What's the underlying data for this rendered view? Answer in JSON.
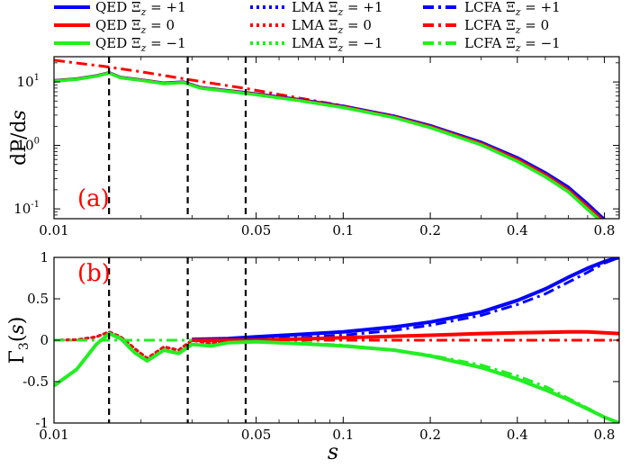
{
  "chart_data": [
    {
      "panel_label": "(a)",
      "type": "line",
      "ylabel": "dP/ds",
      "xscale": "log",
      "yscale": "log",
      "xlim": [
        0.01,
        0.9
      ],
      "ylim": [
        0.07,
        25
      ],
      "x_ticks": [
        0.01,
        0.05,
        0.1,
        0.2,
        0.4,
        0.8
      ],
      "x_tick_labels": [
        "0.01",
        "0.05",
        "0.1",
        "0.2",
        "0.4",
        "0.8"
      ],
      "y_ticks": [
        0.1,
        1,
        10
      ],
      "y_tick_labels": [
        "10",
        "10",
        "10"
      ],
      "y_tick_exponents": [
        "-1",
        "0",
        "1"
      ],
      "vlines": [
        0.0155,
        0.029,
        0.046
      ],
      "series": [
        {
          "name": "LCFA Ξz = 0",
          "color": "#ff0000",
          "dash": "dashdot",
          "width": 3,
          "x": [
            0.01,
            0.015,
            0.02,
            0.03,
            0.046,
            0.07,
            0.1,
            0.15,
            0.2,
            0.3,
            0.4,
            0.5,
            0.6,
            0.7,
            0.77,
            0.8
          ],
          "y": [
            22,
            17.5,
            14.5,
            10.7,
            7.9,
            5.6,
            4.2,
            2.85,
            2.0,
            1.08,
            0.6,
            0.34,
            0.2,
            0.11,
            0.075,
            0.065
          ]
        },
        {
          "name": "QED Ξz = +1",
          "color": "#0000ff",
          "dash": "solid",
          "width": 3.5,
          "x": [
            0.01,
            0.012,
            0.014,
            0.0155,
            0.017,
            0.02,
            0.024,
            0.028,
            0.032,
            0.04,
            0.05,
            0.07,
            0.1,
            0.15,
            0.2,
            0.3,
            0.4,
            0.5,
            0.6,
            0.7,
            0.77,
            0.8
          ],
          "y": [
            10.5,
            11.2,
            12.5,
            14.0,
            11.8,
            10.8,
            9.6,
            10.0,
            8.2,
            7.3,
            6.5,
            5.3,
            4.15,
            2.9,
            2.05,
            1.12,
            0.64,
            0.37,
            0.22,
            0.12,
            0.08,
            0.068
          ]
        },
        {
          "name": "QED Ξz = 0",
          "color": "#ff0000",
          "dash": "solid",
          "width": 3.5,
          "x": [
            0.01,
            0.012,
            0.014,
            0.0155,
            0.017,
            0.02,
            0.024,
            0.028,
            0.032,
            0.04,
            0.05,
            0.07,
            0.1,
            0.15,
            0.2,
            0.3,
            0.4,
            0.5,
            0.6,
            0.7,
            0.77,
            0.8
          ],
          "y": [
            10.4,
            11.1,
            12.4,
            13.9,
            11.7,
            10.7,
            9.5,
            9.9,
            8.1,
            7.2,
            6.4,
            5.2,
            4.05,
            2.82,
            1.98,
            1.07,
            0.6,
            0.345,
            0.2,
            0.108,
            0.073,
            0.062
          ]
        },
        {
          "name": "QED Ξz = −1",
          "color": "#22ee22",
          "dash": "solid",
          "width": 3.5,
          "x": [
            0.01,
            0.012,
            0.014,
            0.0155,
            0.017,
            0.02,
            0.024,
            0.028,
            0.032,
            0.04,
            0.05,
            0.07,
            0.1,
            0.15,
            0.2,
            0.3,
            0.4,
            0.5,
            0.6,
            0.7,
            0.77,
            0.8
          ],
          "y": [
            10.3,
            11.0,
            12.3,
            13.8,
            11.6,
            10.6,
            9.4,
            9.8,
            8.0,
            7.1,
            6.3,
            5.1,
            3.95,
            2.74,
            1.91,
            1.02,
            0.56,
            0.32,
            0.185,
            0.098,
            0.067,
            0.057
          ]
        }
      ]
    },
    {
      "panel_label": "(b)",
      "type": "line",
      "ylabel": "Γ3(s)",
      "xlabel": "s",
      "xscale": "log",
      "xlim": [
        0.01,
        0.9
      ],
      "ylim": [
        -1,
        1
      ],
      "x_ticks": [
        0.01,
        0.05,
        0.1,
        0.2,
        0.4,
        0.8
      ],
      "x_tick_labels": [
        "0.01",
        "0.05",
        "0.1",
        "0.2",
        "0.4",
        "0.8"
      ],
      "y_ticks": [
        -1,
        -0.5,
        0,
        0.5,
        1
      ],
      "y_tick_labels": [
        "-1",
        "-0.5",
        "0",
        "0.5",
        "1"
      ],
      "vlines": [
        0.0155,
        0.029,
        0.046
      ],
      "series": [
        {
          "name": "LMA Ξz = +1",
          "color": "#0000ff",
          "dash": "dotted",
          "width": 3,
          "x": [
            0.01,
            0.012,
            0.014,
            0.0155,
            0.017,
            0.019,
            0.021,
            0.024,
            0.027,
            0.03,
            0.035,
            0.04,
            0.05
          ],
          "y": [
            0.0,
            0.005,
            0.04,
            0.1,
            0.04,
            -0.1,
            -0.22,
            -0.08,
            -0.12,
            0.0,
            -0.04,
            0.0,
            0.01
          ]
        },
        {
          "name": "LMA Ξz = 0",
          "color": "#ff0000",
          "dash": "dotted",
          "width": 3,
          "x": [
            0.01,
            0.012,
            0.014,
            0.0155,
            0.017,
            0.019,
            0.021,
            0.024,
            0.027,
            0.03,
            0.035,
            0.04,
            0.05
          ],
          "y": [
            0.0,
            0.005,
            0.04,
            0.1,
            0.04,
            -0.1,
            -0.22,
            -0.08,
            -0.12,
            0.0,
            -0.04,
            0.0,
            0.0
          ]
        },
        {
          "name": "LCFA Ξz = +1",
          "color": "#0000ff",
          "dash": "dashdot",
          "width": 3,
          "x": [
            0.01,
            0.03,
            0.05,
            0.07,
            0.1,
            0.15,
            0.2,
            0.3,
            0.4,
            0.5,
            0.6,
            0.7,
            0.8,
            0.9
          ],
          "y": [
            0.0,
            0.0,
            0.01,
            0.03,
            0.06,
            0.12,
            0.18,
            0.3,
            0.43,
            0.56,
            0.7,
            0.82,
            0.93,
            1.0
          ]
        },
        {
          "name": "LCFA Ξz = 0",
          "color": "#ff0000",
          "dash": "dashdot",
          "width": 3,
          "x": [
            0.01,
            0.9
          ],
          "y": [
            0.0,
            0.0
          ]
        },
        {
          "name": "LCFA Ξz = −1",
          "color": "#22ee22",
          "dash": "dashdot",
          "width": 3,
          "x": [
            0.01,
            0.03,
            0.05,
            0.07,
            0.1,
            0.15,
            0.2,
            0.3,
            0.4,
            0.5,
            0.6,
            0.7,
            0.8,
            0.9
          ],
          "y": [
            0.0,
            0.0,
            -0.01,
            -0.03,
            -0.06,
            -0.12,
            -0.18,
            -0.3,
            -0.43,
            -0.56,
            -0.7,
            -0.82,
            -0.93,
            -1.0
          ]
        },
        {
          "name": "QED Ξz = +1",
          "color": "#0000ff",
          "dash": "solid",
          "width": 4,
          "x": [
            0.03,
            0.04,
            0.05,
            0.07,
            0.1,
            0.15,
            0.2,
            0.3,
            0.4,
            0.5,
            0.6,
            0.7,
            0.8,
            0.9
          ],
          "y": [
            0.01,
            0.02,
            0.04,
            0.07,
            0.1,
            0.16,
            0.22,
            0.34,
            0.48,
            0.62,
            0.76,
            0.87,
            0.95,
            1.0
          ]
        },
        {
          "name": "QED Ξz = 0",
          "color": "#ff0000",
          "dash": "solid",
          "width": 4,
          "x": [
            0.03,
            0.05,
            0.1,
            0.2,
            0.3,
            0.4,
            0.5,
            0.6,
            0.7,
            0.8,
            0.9
          ],
          "y": [
            0.0,
            0.0,
            0.03,
            0.06,
            0.08,
            0.09,
            0.095,
            0.1,
            0.1,
            0.09,
            0.08
          ]
        },
        {
          "name": "QED Ξz = −1",
          "color": "#22ee22",
          "dash": "solid",
          "width": 4,
          "x": [
            0.01,
            0.012,
            0.014,
            0.0155,
            0.017,
            0.019,
            0.021,
            0.024,
            0.027,
            0.03,
            0.035,
            0.04,
            0.05,
            0.07,
            0.1,
            0.15,
            0.2,
            0.3,
            0.4,
            0.5,
            0.6,
            0.7,
            0.8,
            0.9
          ],
          "y": [
            -0.55,
            -0.35,
            -0.05,
            0.08,
            0.02,
            -0.15,
            -0.25,
            -0.12,
            -0.16,
            -0.05,
            -0.07,
            -0.03,
            -0.02,
            -0.04,
            -0.07,
            -0.12,
            -0.19,
            -0.33,
            -0.47,
            -0.6,
            -0.72,
            -0.83,
            -0.93,
            -1.0
          ]
        }
      ]
    }
  ],
  "legend": {
    "placement": "top",
    "entries": [
      {
        "label": "QED Ξz = +1",
        "color": "#0000ff",
        "dash": "solid"
      },
      {
        "label": "LMA Ξz = +1",
        "color": "#0000ff",
        "dash": "dotted"
      },
      {
        "label": "LCFA Ξz = +1",
        "color": "#0000ff",
        "dash": "dashdot"
      },
      {
        "label": "QED Ξz = 0",
        "color": "#ff0000",
        "dash": "solid"
      },
      {
        "label": "LMA Ξz = 0",
        "color": "#ff0000",
        "dash": "dotted"
      },
      {
        "label": "LCFA Ξz = 0",
        "color": "#ff0000",
        "dash": "dashdot"
      },
      {
        "label": "QED Ξz = −1",
        "color": "#22ee22",
        "dash": "solid"
      },
      {
        "label": "LMA Ξz = −1",
        "color": "#22ee22",
        "dash": "dotted"
      },
      {
        "label": "LCFA Ξz = −1",
        "color": "#22ee22",
        "dash": "dashdot"
      }
    ]
  },
  "colors": {
    "panel_label": "#ff0000",
    "vline": "#000000"
  }
}
